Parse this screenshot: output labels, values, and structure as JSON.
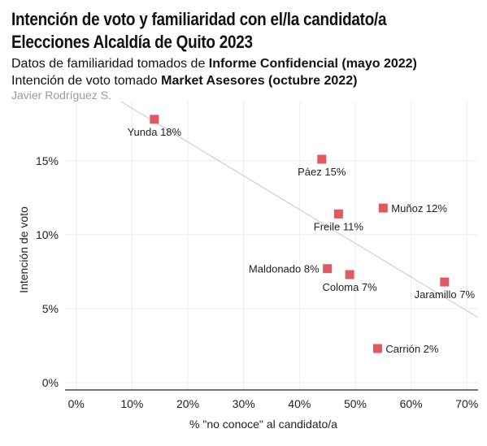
{
  "header": {
    "title": "Intención de voto y familiaridad con el/la candidato/a Elecciones Alcaldía de Quito 2023",
    "subtitle1_prefix": "Datos de familiaridad tomados de ",
    "subtitle1_bold": "Informe Confidencial (mayo 2022)",
    "subtitle2_prefix": "Intención de voto tomado ",
    "subtitle2_bold": "Market Asesores (octubre 2022)",
    "author": "Javier Rodríguez S."
  },
  "chart_data": {
    "type": "scatter",
    "xlabel": "% \"no conoce\" al candidato/a",
    "ylabel": "Intención de voto",
    "xlim": [
      -2,
      72
    ],
    "ylim": [
      -0.5,
      19
    ],
    "x_ticks": [
      0,
      10,
      20,
      30,
      40,
      50,
      60,
      70
    ],
    "x_tick_labels": [
      "0%",
      "10%",
      "20%",
      "30%",
      "40%",
      "50%",
      "60%",
      "70%"
    ],
    "y_ticks": [
      0,
      5,
      10,
      15
    ],
    "y_tick_labels": [
      "0%",
      "5%",
      "10%",
      "15%"
    ],
    "grid": true,
    "marker_color": "#e05a5f",
    "trend_color": "#c8c8c8",
    "trendline": {
      "x": [
        8,
        72
      ],
      "y": [
        19,
        4.4
      ]
    },
    "points": [
      {
        "label": "Yunda 18%",
        "x": 14,
        "y": 17.8,
        "label_pos": "below"
      },
      {
        "label": "Páez 15%",
        "x": 44,
        "y": 15.1,
        "label_pos": "below"
      },
      {
        "label": "Muñoz 12%",
        "x": 55,
        "y": 11.8,
        "label_pos": "right"
      },
      {
        "label": "Freile 11%",
        "x": 47,
        "y": 11.4,
        "label_pos": "below"
      },
      {
        "label": "Maldonado 8%",
        "x": 45,
        "y": 7.7,
        "label_pos": "left"
      },
      {
        "label": "Coloma 7%",
        "x": 49,
        "y": 7.3,
        "label_pos": "below"
      },
      {
        "label": "Jaramillo 7%",
        "x": 66,
        "y": 6.8,
        "label_pos": "below"
      },
      {
        "label": "Carrión 2%",
        "x": 54,
        "y": 2.3,
        "label_pos": "right"
      }
    ]
  }
}
